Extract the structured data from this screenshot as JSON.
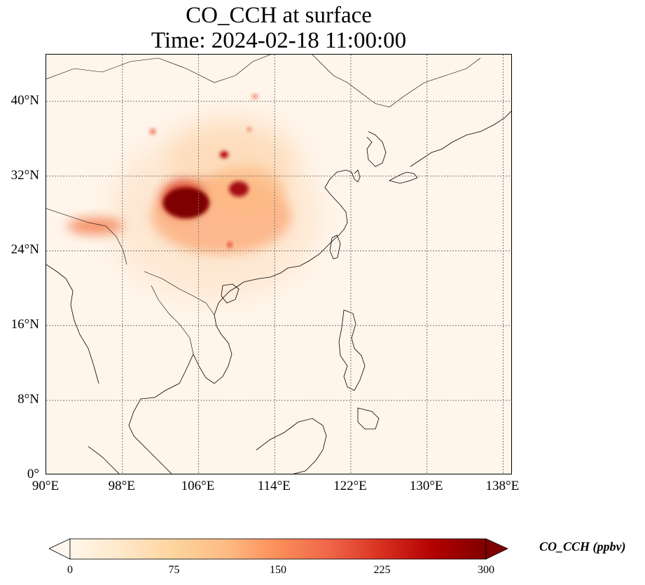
{
  "title": {
    "line1": "CO_CCH at surface",
    "line2": "Time: 2024-02-18 11:00:00"
  },
  "map": {
    "extent": {
      "lon_min": 90,
      "lon_max": 139,
      "lat_min": 0,
      "lat_max": 45
    },
    "lat_ticks": [
      {
        "value": 0,
        "label": "0°"
      },
      {
        "value": 8,
        "label": "8°N"
      },
      {
        "value": 16,
        "label": "16°N"
      },
      {
        "value": 24,
        "label": "24°N"
      },
      {
        "value": 32,
        "label": "32°N"
      },
      {
        "value": 40,
        "label": "40°N"
      }
    ],
    "lon_ticks": [
      {
        "value": 90,
        "label": "90°E"
      },
      {
        "value": 98,
        "label": "98°E"
      },
      {
        "value": 106,
        "label": "106°E"
      },
      {
        "value": 114,
        "label": "114°E"
      },
      {
        "value": 122,
        "label": "122°E"
      },
      {
        "value": 130,
        "label": "130°E"
      },
      {
        "value": 138,
        "label": "138°E"
      }
    ],
    "gridlines": true,
    "coastlines": true,
    "background_color": "#fff5eb"
  },
  "colorbar": {
    "label": "CO_CCH (ppbv)",
    "colormap": "OrRd",
    "min": 0,
    "max": 300,
    "extend": "both",
    "ticks": [
      {
        "value": 0,
        "label": "0"
      },
      {
        "value": 75,
        "label": "75"
      },
      {
        "value": 150,
        "label": "150"
      },
      {
        "value": 225,
        "label": "225"
      },
      {
        "value": 300,
        "label": "300"
      }
    ]
  }
}
